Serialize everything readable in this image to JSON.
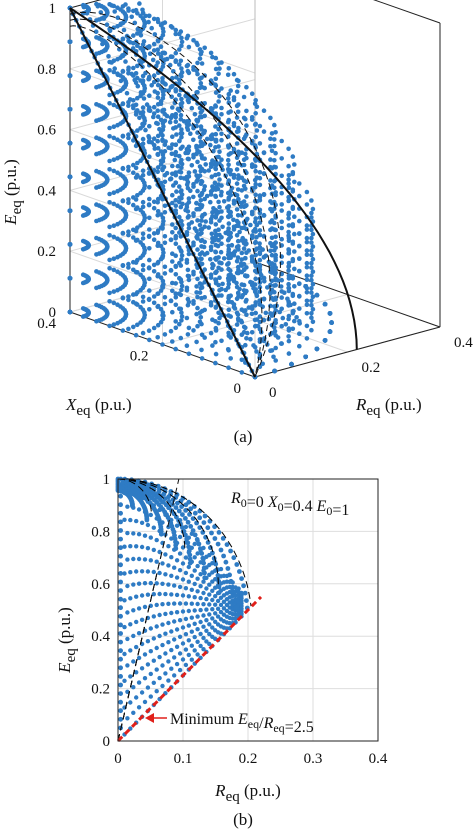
{
  "chart_data": [
    {
      "type": "scatter",
      "panel": "a",
      "caption": "(a)",
      "projection": "3d",
      "axes": {
        "x": {
          "symbol": "R",
          "sub": "eq",
          "unit": " (p.u.)",
          "ticks": [
            0,
            0.2,
            0.4
          ],
          "tick_labels": [
            "0",
            "0.2",
            "0.4"
          ],
          "lim": [
            0,
            0.4
          ]
        },
        "y": {
          "symbol": "X",
          "sub": "eq",
          "unit": " (p.u.)",
          "ticks": [
            0,
            0.2,
            0.4
          ],
          "tick_labels": [
            "0",
            "0.2",
            "0.4"
          ],
          "lim": [
            0,
            0.4
          ]
        },
        "z": {
          "symbol": "E",
          "sub": "eq",
          "unit": " (p.u.)",
          "ticks": [
            0,
            0.2,
            0.4,
            0.6,
            0.8,
            1
          ],
          "tick_labels": [
            "0",
            "0.2",
            "0.4",
            "0.6",
            "0.8",
            "1"
          ],
          "lim": [
            0,
            1
          ]
        }
      },
      "grid": true,
      "marker_color": "#2e7bc4",
      "description_points": "dense cloud of operating points bounded by R^2+X^2 <= 0.16, with E_eq between linear bound and sqrt(1 - (R^2+X^2)/0.16)"
    },
    {
      "type": "scatter",
      "panel": "b",
      "caption": "(b)",
      "axes": {
        "x": {
          "symbol": "R",
          "sub": "eq",
          "unit": " (p.u.)",
          "ticks": [
            0,
            0.1,
            0.2,
            0.3,
            0.4
          ],
          "tick_labels": [
            "0",
            "0.1",
            "0.2",
            "0.3",
            "0.4"
          ],
          "lim": [
            0,
            0.4
          ]
        },
        "y": {
          "symbol": "E",
          "sub": "eq",
          "unit": " (p.u.)",
          "ticks": [
            0,
            0.2,
            0.4,
            0.6,
            0.8,
            1
          ],
          "tick_labels": [
            "0",
            "0.2",
            "0.4",
            "0.6",
            "0.8",
            "1"
          ],
          "lim": [
            0,
            1
          ]
        }
      },
      "grid": true,
      "marker_color": "#2e7bc4",
      "params_label": {
        "parts": [
          {
            "text": "R",
            "italic": true
          },
          {
            "text": "0",
            "sub": true
          },
          {
            "text": "=0 "
          },
          {
            "text": "X",
            "italic": true
          },
          {
            "text": "0",
            "sub": true
          },
          {
            "text": "=0.4 "
          },
          {
            "text": "E",
            "italic": true
          },
          {
            "text": "0",
            "sub": true
          },
          {
            "text": "=1"
          }
        ]
      },
      "annotation": {
        "parts": [
          {
            "text": "Minimum "
          },
          {
            "text": "E",
            "italic": true
          },
          {
            "text": "eq",
            "sub": true
          },
          {
            "text": "/"
          },
          {
            "text": "R",
            "italic": true
          },
          {
            "text": "eq",
            "sub": true
          },
          {
            "text": "=2.5"
          }
        ],
        "arrow_color": "#e0201a"
      },
      "min_ratio_line": {
        "slope": 2.5,
        "x": [
          0,
          0.22
        ],
        "color": "#e0201a",
        "style": "dashed"
      },
      "envelope": {
        "x_max": 0.2,
        "style": "dashed",
        "color": "#000000"
      }
    }
  ]
}
